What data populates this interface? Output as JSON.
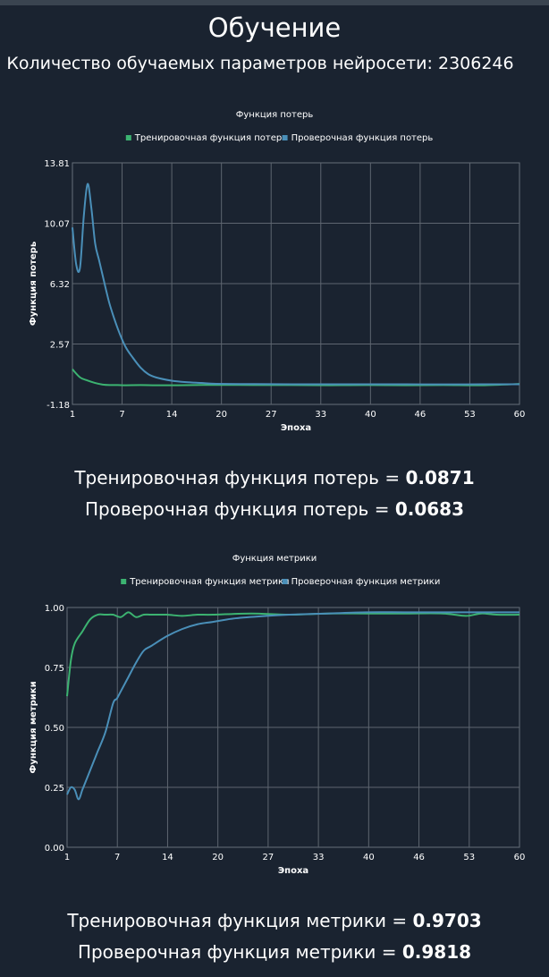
{
  "page": {
    "title": "Обучение",
    "params_label": "Количество обучаемых параметров нейросети:",
    "params_value": "2306246"
  },
  "loss_summary": {
    "train_label": "Тренировочная функция потерь =",
    "train_value": "0.0871",
    "val_label": "Проверочная функция потерь =",
    "val_value": "0.0683"
  },
  "metric_summary": {
    "train_label": "Тренировочная функция метрики =",
    "train_value": "0.9703",
    "val_label": "Проверочная функция метрики =",
    "val_value": "0.9818"
  },
  "chart_data": [
    {
      "type": "line",
      "title": "Функция потерь",
      "xlabel": "Эпоха",
      "ylabel": "Функция потерь",
      "xlim": [
        1,
        60
      ],
      "ylim": [
        -1.18,
        13.81
      ],
      "xticks": [
        "1",
        "7",
        "14",
        "20",
        "27",
        "33",
        "40",
        "46",
        "53",
        "60"
      ],
      "yticks": [
        "-1.18",
        "2.57",
        "6.32",
        "10.07",
        "13.81"
      ],
      "grid": true,
      "legend": "top-center",
      "colors": {
        "train": "#3cb371",
        "val": "#4a8fb8"
      },
      "series": [
        {
          "name": "Тренировочная функция потерь",
          "color": "#3cb371",
          "x": [
            1,
            2,
            3,
            4,
            5,
            6,
            7,
            8,
            10,
            12,
            15,
            20,
            25,
            30,
            35,
            40,
            45,
            50,
            55,
            60
          ],
          "y": [
            1.0,
            0.5,
            0.3,
            0.15,
            0.05,
            0.02,
            0.02,
            0.01,
            0.02,
            0.01,
            0.01,
            0.03,
            0.02,
            0.02,
            0.01,
            0.02,
            0.01,
            0.02,
            0.01,
            0.09
          ]
        },
        {
          "name": "Проверочная функция потерь",
          "color": "#4a8fb8",
          "x": [
            1,
            1.5,
            2,
            2.5,
            3,
            3.5,
            4,
            4.5,
            5,
            5.5,
            6,
            7,
            8,
            9,
            10,
            11,
            12,
            14,
            16,
            18,
            20,
            25,
            30,
            35,
            40,
            45,
            50,
            55,
            60
          ],
          "y": [
            9.8,
            7.5,
            7.3,
            10.5,
            12.5,
            11.0,
            8.8,
            7.8,
            6.8,
            5.8,
            4.9,
            3.5,
            2.4,
            1.7,
            1.1,
            0.7,
            0.5,
            0.3,
            0.2,
            0.15,
            0.1,
            0.08,
            0.07,
            0.07,
            0.07,
            0.07,
            0.06,
            0.07,
            0.07
          ]
        }
      ]
    },
    {
      "type": "line",
      "title": "Функция метрики",
      "xlabel": "Эпоха",
      "ylabel": "Функция метрики",
      "xlim": [
        1,
        60
      ],
      "ylim": [
        0.0,
        1.0
      ],
      "xticks": [
        "1",
        "7",
        "14",
        "20",
        "27",
        "33",
        "40",
        "46",
        "53",
        "60"
      ],
      "yticks": [
        "0.00",
        "0.25",
        "0.50",
        "0.75",
        "1.00"
      ],
      "grid": true,
      "legend": "top-center",
      "colors": {
        "train": "#3cb371",
        "val": "#4a8fb8"
      },
      "series": [
        {
          "name": "Тренировочная функция метрики",
          "color": "#3cb371",
          "x": [
            1,
            1.5,
            2,
            3,
            4,
            5,
            6,
            7,
            8,
            9,
            10,
            11,
            12,
            14,
            16,
            18,
            20,
            25,
            30,
            35,
            40,
            45,
            50,
            53,
            55,
            57,
            60
          ],
          "y": [
            0.63,
            0.78,
            0.85,
            0.9,
            0.95,
            0.97,
            0.97,
            0.97,
            0.96,
            0.98,
            0.96,
            0.97,
            0.97,
            0.97,
            0.965,
            0.97,
            0.97,
            0.975,
            0.97,
            0.975,
            0.975,
            0.975,
            0.975,
            0.965,
            0.975,
            0.97,
            0.97
          ]
        },
        {
          "name": "Проверочная функция метрики",
          "color": "#4a8fb8",
          "x": [
            1,
            1.5,
            2,
            2.5,
            3,
            3.5,
            4,
            4.5,
            5,
            6,
            7,
            7.5,
            8,
            9,
            10,
            11,
            12,
            14,
            16,
            18,
            20,
            23,
            27,
            30,
            35,
            40,
            45,
            50,
            55,
            60
          ],
          "y": [
            0.22,
            0.25,
            0.24,
            0.2,
            0.24,
            0.28,
            0.32,
            0.36,
            0.4,
            0.48,
            0.6,
            0.62,
            0.65,
            0.71,
            0.77,
            0.82,
            0.84,
            0.88,
            0.91,
            0.93,
            0.94,
            0.955,
            0.965,
            0.97,
            0.975,
            0.98,
            0.98,
            0.98,
            0.98,
            0.98
          ]
        }
      ]
    }
  ]
}
